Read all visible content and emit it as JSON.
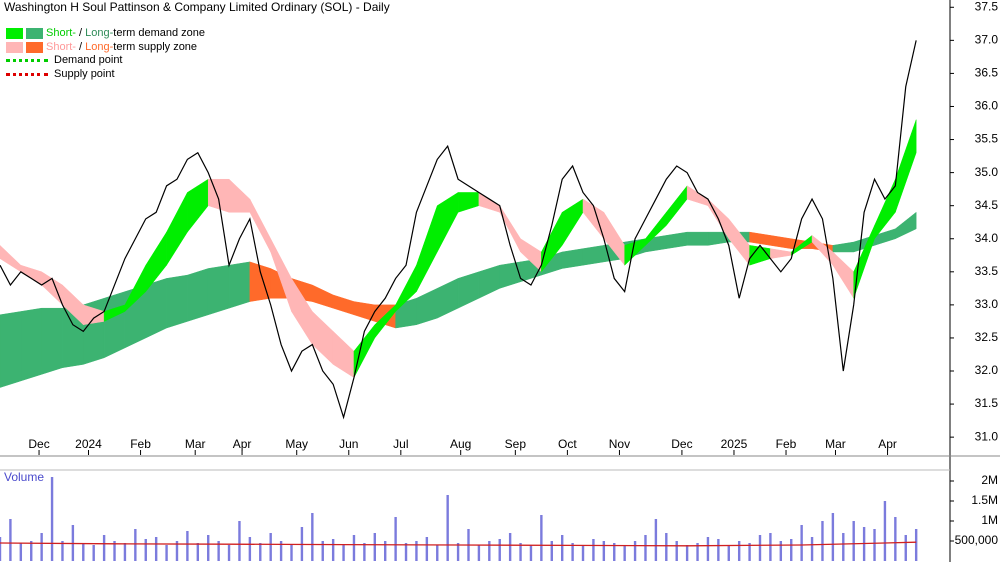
{
  "chart_data": [
    {
      "type": "line",
      "title": "Washington H Soul Pattinson & Company Limited Ordinary (SOL) - Daily",
      "xlim": [
        0,
        365
      ],
      "ylim": [
        30.73,
        37.61
      ],
      "yticks": [
        {
          "value": 31,
          "label": "31.0"
        },
        31.5,
        {
          "value": 32,
          "label": "32.0"
        },
        32.5,
        {
          "value": 33,
          "label": "33.0"
        },
        33.5,
        {
          "value": 34,
          "label": "34.0"
        },
        34.5,
        {
          "value": 35,
          "label": "35.0"
        },
        35.5,
        {
          "value": 36,
          "label": "36.0"
        },
        36.5,
        {
          "value": 37,
          "label": "37.0"
        },
        37.5
      ],
      "xticks": [
        {
          "value": 15,
          "label": "Dec"
        },
        {
          "value": 34,
          "label": "2024"
        },
        {
          "value": 54,
          "label": "Feb"
        },
        {
          "value": 75,
          "label": "Mar"
        },
        {
          "value": 93,
          "label": "Apr"
        },
        {
          "value": 114,
          "label": "May"
        },
        {
          "value": 134,
          "label": "Jun"
        },
        {
          "value": 154,
          "label": "Jul"
        },
        {
          "value": 177,
          "label": "Aug"
        },
        {
          "value": 198,
          "label": "Sep"
        },
        {
          "value": 218,
          "label": "Oct"
        },
        {
          "value": 238,
          "label": "Nov"
        },
        {
          "value": 262,
          "label": "Dec"
        },
        {
          "value": 282,
          "label": "2025"
        },
        {
          "value": 302,
          "label": "Feb"
        },
        {
          "value": 321,
          "label": "Mar"
        },
        {
          "value": 341,
          "label": "Apr"
        }
      ],
      "x": [
        0,
        4,
        8,
        12,
        16,
        20,
        24,
        28,
        32,
        36,
        40,
        44,
        48,
        52,
        56,
        60,
        64,
        68,
        72,
        76,
        80,
        84,
        88,
        92,
        96,
        100,
        104,
        108,
        112,
        116,
        120,
        124,
        128,
        132,
        136,
        140,
        144,
        148,
        152,
        156,
        160,
        164,
        168,
        172,
        176,
        180,
        184,
        188,
        192,
        196,
        200,
        204,
        208,
        212,
        216,
        220,
        224,
        228,
        232,
        236,
        240,
        244,
        248,
        252,
        256,
        260,
        264,
        268,
        272,
        276,
        280,
        284,
        288,
        292,
        296,
        300,
        304,
        308,
        312,
        316,
        320,
        324,
        328,
        332,
        336,
        340,
        344,
        348,
        352
      ],
      "values": [
        33.6,
        33.3,
        33.5,
        33.4,
        33.3,
        33.4,
        33.0,
        32.7,
        32.6,
        32.8,
        32.9,
        33.3,
        33.7,
        34.0,
        34.3,
        34.4,
        34.8,
        34.9,
        35.2,
        35.3,
        35.0,
        34.6,
        33.6,
        34.0,
        34.3,
        33.5,
        33.0,
        32.4,
        32.0,
        32.3,
        32.4,
        32.0,
        31.8,
        31.3,
        31.9,
        32.6,
        32.9,
        33.1,
        33.4,
        33.6,
        34.4,
        34.8,
        35.2,
        35.4,
        34.9,
        34.8,
        34.7,
        34.6,
        34.5,
        33.9,
        33.4,
        33.3,
        33.6,
        34.2,
        34.9,
        35.1,
        34.7,
        34.5,
        34.0,
        33.4,
        33.2,
        34.0,
        34.3,
        34.6,
        34.9,
        35.1,
        35.0,
        34.7,
        34.6,
        34.3,
        33.9,
        33.1,
        33.7,
        33.9,
        33.7,
        33.5,
        33.7,
        34.3,
        34.6,
        34.3,
        33.4,
        32.0,
        33.0,
        34.4,
        34.9,
        34.6,
        34.8,
        36.3,
        37.0
      ],
      "color": "#000000",
      "zone_x": [
        0,
        8,
        16,
        24,
        32,
        40,
        48,
        56,
        64,
        72,
        80,
        88,
        96,
        104,
        112,
        120,
        128,
        136,
        144,
        152,
        160,
        168,
        176,
        184,
        192,
        200,
        208,
        216,
        224,
        232,
        240,
        248,
        256,
        264,
        272,
        280,
        288,
        296,
        304,
        312,
        320,
        328,
        336,
        344,
        352
      ],
      "long_upper": [
        32.85,
        32.9,
        32.95,
        32.95,
        33.0,
        33.1,
        33.2,
        33.3,
        33.4,
        33.45,
        33.55,
        33.6,
        33.65,
        33.55,
        33.4,
        33.3,
        33.15,
        33.05,
        33.0,
        33.0,
        33.1,
        33.25,
        33.4,
        33.5,
        33.6,
        33.65,
        33.7,
        33.8,
        33.85,
        33.9,
        33.95,
        34.0,
        34.05,
        34.1,
        34.1,
        34.1,
        34.1,
        34.05,
        34.0,
        33.95,
        33.9,
        33.95,
        34.05,
        34.15,
        34.4
      ],
      "long_lower": [
        31.75,
        31.85,
        31.95,
        32.05,
        32.1,
        32.2,
        32.35,
        32.5,
        32.65,
        32.75,
        32.85,
        32.95,
        33.05,
        33.1,
        33.1,
        33.05,
        32.95,
        32.85,
        32.75,
        32.65,
        32.7,
        32.8,
        32.95,
        33.1,
        33.25,
        33.35,
        33.45,
        33.55,
        33.6,
        33.65,
        33.7,
        33.8,
        33.85,
        33.9,
        33.9,
        33.95,
        33.95,
        33.9,
        33.85,
        33.85,
        33.8,
        33.8,
        33.9,
        34.0,
        34.15
      ],
      "short_upper": [
        33.9,
        33.6,
        33.5,
        33.3,
        33.0,
        32.9,
        33.0,
        33.6,
        34.1,
        34.7,
        34.9,
        34.9,
        34.6,
        34.0,
        33.4,
        32.9,
        32.6,
        32.3,
        32.7,
        33.0,
        33.6,
        34.5,
        34.7,
        34.7,
        34.5,
        34.0,
        33.8,
        34.4,
        34.6,
        34.4,
        33.9,
        34.0,
        34.4,
        34.8,
        34.6,
        34.3,
        33.9,
        33.85,
        33.8,
        34.05,
        33.8,
        33.5,
        34.2,
        34.9,
        35.8
      ],
      "short_lower": [
        33.7,
        33.5,
        33.3,
        33.0,
        32.7,
        32.75,
        32.9,
        33.2,
        33.6,
        34.1,
        34.5,
        34.4,
        34.4,
        33.8,
        32.9,
        32.4,
        32.1,
        31.9,
        32.5,
        32.9,
        33.2,
        33.8,
        34.4,
        34.5,
        34.4,
        33.8,
        33.5,
        33.9,
        34.4,
        34.0,
        33.6,
        33.9,
        34.2,
        34.6,
        34.5,
        34.0,
        33.6,
        33.7,
        33.75,
        33.95,
        33.6,
        33.1,
        34.0,
        34.4,
        35.3
      ],
      "zone_colors": {
        "short_demand": "#00ee00",
        "long_demand": "#3cb371",
        "short_supply": "#ffb6b6",
        "long_supply": "#ff6a2a"
      },
      "legend": [
        {
          "swatches": [
            "#00ee00",
            "#3cb371"
          ],
          "parts": [
            "Short-",
            " / ",
            "Long-",
            "term demand zone"
          ],
          "part_colors": [
            "#00cc00",
            "#000000",
            "#2e8b57",
            "#000000"
          ]
        },
        {
          "swatches": [
            "#ffb6b6",
            "#ff6a2a"
          ],
          "parts": [
            "Short-",
            " / ",
            "Long-",
            "term supply zone"
          ],
          "part_colors": [
            "#ff9999",
            "#000000",
            "#ff6a2a",
            "#000000"
          ]
        },
        {
          "dotted": "#00cc00",
          "parts": [
            "Demand point"
          ],
          "part_colors": [
            "#000000"
          ]
        },
        {
          "dotted": "#dd0000",
          "parts": [
            "Supply point"
          ],
          "part_colors": [
            "#000000"
          ]
        }
      ]
    },
    {
      "type": "bar",
      "title": "Volume",
      "xlim": [
        0,
        365
      ],
      "ylim": [
        0,
        2275000
      ],
      "yticks": [
        {
          "value": 500000,
          "label": "500,000"
        },
        {
          "value": 1000000,
          "label": "1M"
        },
        {
          "value": 1500000,
          "label": "1.5M"
        },
        {
          "value": 2000000,
          "label": "2M"
        }
      ],
      "x": [
        0,
        4,
        8,
        12,
        16,
        20,
        24,
        28,
        32,
        36,
        40,
        44,
        48,
        52,
        56,
        60,
        64,
        68,
        72,
        76,
        80,
        84,
        88,
        92,
        96,
        100,
        104,
        108,
        112,
        116,
        120,
        124,
        128,
        132,
        136,
        140,
        144,
        148,
        152,
        156,
        160,
        164,
        168,
        172,
        176,
        180,
        184,
        188,
        192,
        196,
        200,
        204,
        208,
        212,
        216,
        220,
        224,
        228,
        232,
        236,
        240,
        244,
        248,
        252,
        256,
        260,
        264,
        268,
        272,
        276,
        280,
        284,
        288,
        292,
        296,
        300,
        304,
        308,
        312,
        316,
        320,
        324,
        328,
        332,
        336,
        340,
        344,
        348,
        352
      ],
      "values": [
        600000,
        1050000,
        450000,
        500000,
        700000,
        2100000,
        500000,
        900000,
        450000,
        400000,
        650000,
        500000,
        450000,
        800000,
        550000,
        600000,
        400000,
        500000,
        750000,
        450000,
        650000,
        500000,
        400000,
        1000000,
        600000,
        450000,
        700000,
        500000,
        400000,
        850000,
        1200000,
        500000,
        550000,
        400000,
        650000,
        450000,
        700000,
        500000,
        1100000,
        450000,
        500000,
        600000,
        400000,
        1650000,
        450000,
        800000,
        400000,
        500000,
        550000,
        700000,
        450000,
        400000,
        1150000,
        500000,
        650000,
        450000,
        400000,
        550000,
        500000,
        450000,
        400000,
        500000,
        650000,
        1050000,
        700000,
        500000,
        400000,
        450000,
        600000,
        550000,
        400000,
        500000,
        450000,
        650000,
        700000,
        500000,
        550000,
        900000,
        600000,
        1000000,
        1200000,
        700000,
        1000000,
        850000,
        800000,
        1500000,
        1100000,
        650000,
        800000
      ],
      "color": "#7b7bdd",
      "ma_x": [
        0,
        44,
        88,
        132,
        176,
        220,
        264,
        308,
        352
      ],
      "ma_values": [
        450000,
        430000,
        420000,
        410000,
        400000,
        390000,
        380000,
        400000,
        470000
      ],
      "ma_color": "#d02020"
    }
  ]
}
